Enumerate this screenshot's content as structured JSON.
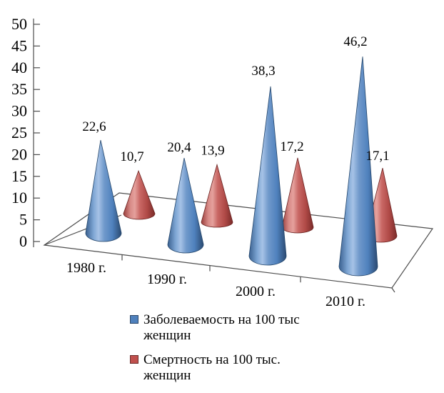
{
  "chart_data": {
    "type": "bar",
    "variant": "3d-cone-perspective",
    "title": "",
    "categories": [
      "1980 г.",
      "1990 г.",
      "2000 г.",
      "2010 г."
    ],
    "series": [
      {
        "name": "Заболеваемость на 100 тыс женщин",
        "color": "#4f81bd",
        "values": [
          22.6,
          20.4,
          38.3,
          46.2
        ],
        "labels": [
          "22,6",
          "20,4",
          "38,3",
          "46,2"
        ]
      },
      {
        "name": "Смертность на 100 тыс. женщин",
        "color": "#c0504d",
        "values": [
          10.7,
          13.9,
          17.2,
          17.1
        ],
        "labels": [
          "10,7",
          "13,9",
          "17,2",
          "17,1"
        ]
      }
    ],
    "xlabel": "",
    "ylabel": "",
    "ylim": [
      0,
      50
    ],
    "yticks": [
      "0",
      "5",
      "10",
      "15",
      "20",
      "25",
      "30",
      "35",
      "40",
      "45",
      "50"
    ],
    "grid": false,
    "legend_position": "bottom",
    "background": "#ffffff",
    "axis_color": "#4d4d4d",
    "label_color": "#000000"
  }
}
